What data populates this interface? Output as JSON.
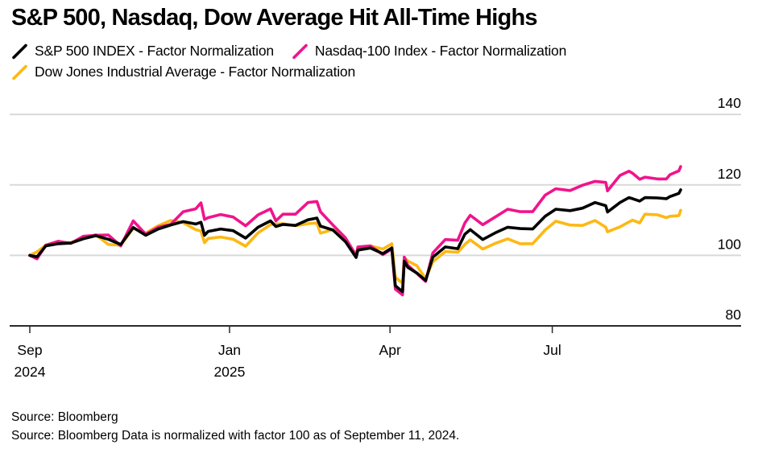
{
  "title": "S&P 500, Nasdaq, Dow Average Hit All-Time Highs",
  "legend": {
    "items": [
      {
        "label": "S&P 500 INDEX - Factor Normalization",
        "color": "#000000"
      },
      {
        "label": "Nasdaq-100 Index - Factor Normalization",
        "color": "#f0148c"
      },
      {
        "label": "Dow Jones Industrial Average - Factor Normalization",
        "color": "#fdb813"
      }
    ]
  },
  "footnotes": {
    "line1": "Source: Bloomberg",
    "line2": "Source: Bloomberg Data is normalized with factor 100 as of September 11, 2024."
  },
  "chart_data": {
    "type": "line",
    "title": "S&P 500, Nasdaq, Dow Average Hit All-Time Highs",
    "x_unit": "days since 2024-09-11",
    "x_range_days": [
      0,
      365
    ],
    "x_ticks": [
      {
        "day": 0,
        "label": "Sep",
        "sublabel": "2024"
      },
      {
        "day": 112,
        "label": "Jan",
        "sublabel": "2025"
      },
      {
        "day": 202,
        "label": "Apr",
        "sublabel": ""
      },
      {
        "day": 293,
        "label": "Jul",
        "sublabel": ""
      }
    ],
    "y_ticks": [
      80,
      100,
      120,
      140
    ],
    "ylim": [
      80,
      146
    ],
    "grid": "horizontal",
    "legend_position": "top",
    "baseline_note": "normalized, factor 100 as of September 11, 2024",
    "days": [
      0,
      4,
      9,
      16,
      23,
      30,
      37,
      44,
      51,
      58,
      65,
      72,
      79,
      86,
      93,
      96,
      98,
      100,
      107,
      114,
      121,
      128,
      135,
      138,
      142,
      149,
      156,
      161,
      163,
      170,
      177,
      183,
      184,
      191,
      198,
      203,
      205,
      209,
      210,
      212,
      217,
      222,
      226,
      233,
      240,
      244,
      247,
      254,
      261,
      268,
      275,
      282,
      289,
      295,
      303,
      310,
      317,
      323,
      324,
      331,
      336,
      338,
      342,
      345,
      352,
      357,
      359,
      364,
      365
    ],
    "series": [
      {
        "name": "S&P 500 INDEX - Factor Normalization",
        "color": "#000000",
        "values": [
          100,
          99.6,
          102.7,
          103.3,
          103.5,
          104.7,
          105.6,
          104.6,
          103.1,
          107.9,
          105.7,
          107.5,
          108.6,
          109.6,
          108.9,
          109.4,
          105.7,
          106.8,
          107.5,
          107.0,
          104.9,
          108.0,
          109.8,
          108.2,
          108.8,
          108.5,
          110.1,
          110.6,
          108.3,
          107.2,
          103.9,
          99.4,
          101.5,
          102.1,
          100.5,
          102.1,
          91.4,
          89.7,
          98.3,
          96.6,
          95.0,
          92.9,
          99.5,
          102.4,
          101.9,
          106.0,
          107.3,
          104.5,
          106.4,
          108.0,
          107.6,
          107.5,
          111.1,
          113.1,
          112.7,
          113.4,
          115.0,
          114.1,
          112.3,
          115.0,
          116.4,
          116.1,
          115.4,
          116.4,
          116.3,
          116.1,
          116.7,
          117.6,
          118.6
        ]
      },
      {
        "name": "Nasdaq-100 Index - Factor Normalization",
        "color": "#f0148c",
        "values": [
          100,
          99.0,
          102.9,
          104.0,
          103.4,
          105.4,
          105.7,
          105.8,
          102.7,
          109.8,
          106.0,
          108.0,
          108.8,
          112.4,
          113.2,
          114.9,
          110.2,
          110.7,
          111.6,
          110.9,
          108.4,
          111.5,
          113.2,
          109.8,
          111.7,
          111.7,
          115.0,
          115.3,
          112.4,
          108.6,
          105.0,
          99.9,
          102.4,
          102.7,
          100.2,
          101.8,
          90.4,
          88.8,
          99.5,
          97.2,
          94.9,
          92.6,
          100.7,
          104.5,
          104.3,
          109.2,
          111.4,
          108.7,
          110.9,
          113.1,
          112.4,
          112.4,
          117.1,
          118.9,
          118.4,
          119.9,
          121.0,
          120.7,
          118.3,
          122.7,
          123.9,
          123.3,
          121.6,
          122.2,
          121.7,
          121.7,
          122.9,
          124.0,
          125.2
        ]
      },
      {
        "name": "Dow Jones Industrial Average - Factor Normalization",
        "color": "#fdb813",
        "values": [
          100,
          101.0,
          102.9,
          103.6,
          103.6,
          104.9,
          105.9,
          103.1,
          102.9,
          107.7,
          106.3,
          108.4,
          109.9,
          109.3,
          107.3,
          106.9,
          103.6,
          104.8,
          105.2,
          104.6,
          102.6,
          106.4,
          108.7,
          108.9,
          109.0,
          108.4,
          109.0,
          109.2,
          106.3,
          107.3,
          104.7,
          100.2,
          101.5,
          102.7,
          101.8,
          103.3,
          93.8,
          92.1,
          99.4,
          98.4,
          97.1,
          93.4,
          98.2,
          101.1,
          100.9,
          103.1,
          104.4,
          101.8,
          103.4,
          104.7,
          103.3,
          103.3,
          107.2,
          109.7,
          108.6,
          108.5,
          109.9,
          108.0,
          106.7,
          108.1,
          109.5,
          110.0,
          109.2,
          111.7,
          111.5,
          110.7,
          111.1,
          111.3,
          112.8
        ]
      }
    ],
    "style": {
      "grid_color": "#d9d9d9",
      "axis_color": "#2b2b2b",
      "line_width": 3.6
    }
  }
}
